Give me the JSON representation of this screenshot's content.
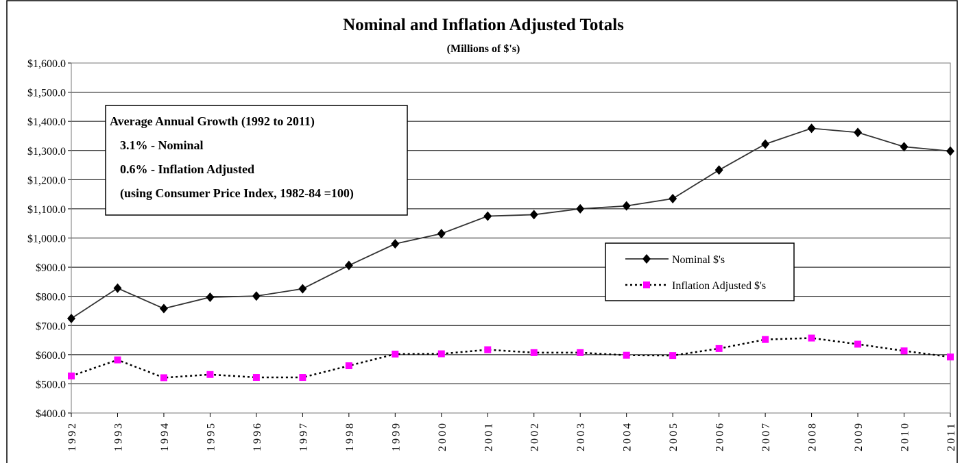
{
  "chart_data": {
    "type": "line",
    "title": "Nominal and Inflation Adjusted Totals",
    "subtitle": "(Millions of $'s)",
    "annotation": [
      "Average Annual Growth (1992 to 2011)",
      "3.1%  - Nominal",
      "0.6%  - Inflation Adjusted",
      "(using Consumer Price Index, 1982-84 =100)"
    ],
    "categories": [
      "1992",
      "1993",
      "1994",
      "1995",
      "1996",
      "1997",
      "1998",
      "1999",
      "2000",
      "2001",
      "2002",
      "2003",
      "2004",
      "2005",
      "2006",
      "2007",
      "2008",
      "2009",
      "2010",
      "2011"
    ],
    "series": [
      {
        "name": "Nominal $'s",
        "color": "#333333",
        "marker_color": "#000000",
        "marker": "diamond",
        "dashed": false,
        "values": [
          724,
          828,
          758,
          797,
          801,
          826,
          906,
          980,
          1015,
          1075,
          1080,
          1100,
          1110,
          1135,
          1233,
          1322,
          1376,
          1362,
          1313,
          1298
        ]
      },
      {
        "name": "Inflation Adjusted $'s",
        "color": "#000000",
        "marker_color": "#ff00ff",
        "marker": "square",
        "dashed": true,
        "values": [
          527,
          582,
          521,
          532,
          522,
          522,
          562,
          602,
          603,
          617,
          607,
          607,
          598,
          597,
          621,
          652,
          657,
          636,
          613,
          592
        ]
      }
    ],
    "ylim": [
      400,
      1600
    ],
    "yticks": [
      {
        "value": 400,
        "label": "$400.0"
      },
      {
        "value": 500,
        "label": "$500.0"
      },
      {
        "value": 600,
        "label": "$600.0"
      },
      {
        "value": 700,
        "label": "$700.0"
      },
      {
        "value": 800,
        "label": "$800.0"
      },
      {
        "value": 900,
        "label": "$900.0"
      },
      {
        "value": 1000,
        "label": "$1,000.0"
      },
      {
        "value": 1100,
        "label": "$1,100.0"
      },
      {
        "value": 1200,
        "label": "$1,200.0"
      },
      {
        "value": 1300,
        "label": "$1,300.0"
      },
      {
        "value": 1400,
        "label": "$1,400.0"
      },
      {
        "value": 1500,
        "label": "$1,500.0"
      },
      {
        "value": 1600,
        "label": "$1,600.0"
      }
    ],
    "grid": true
  }
}
